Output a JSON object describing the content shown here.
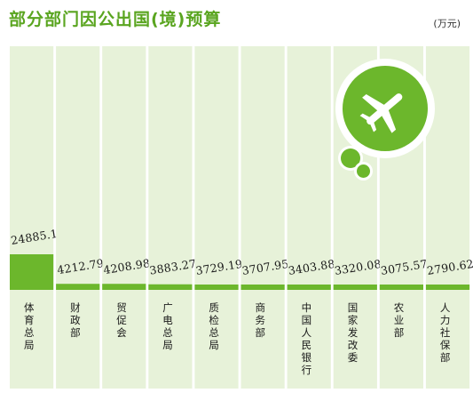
{
  "header": {
    "title": "部分部门因公出国(境)预算",
    "unit": "(万元)"
  },
  "icons": {
    "plane": "airplane-icon"
  },
  "colors": {
    "accent": "#6cb72c",
    "panel": "#e7f2d9",
    "title": "#5aa520"
  },
  "chart_data": {
    "type": "bar",
    "categories": [
      "体育总局",
      "财政部",
      "贸促会",
      "广电总局",
      "质检总局",
      "商务部",
      "中国人民银行",
      "国家发改委",
      "农业部",
      "人力社保部"
    ],
    "values": [
      24885.11,
      4212.79,
      4208.98,
      3883.27,
      3729.19,
      3707.95,
      3403.88,
      3320.08,
      3075.57,
      2790.62
    ],
    "value_labels": [
      "24885.11",
      "4212.79",
      "4208.98",
      "3883.27",
      "3729.19",
      "3707.95",
      "3403.88",
      "3320.08",
      "3075.57",
      "2790.62"
    ],
    "title": "部分部门因公出国(境)预算",
    "unit": "(万元)",
    "xlabel": "",
    "ylabel": "",
    "grid": false,
    "legend": "none"
  }
}
